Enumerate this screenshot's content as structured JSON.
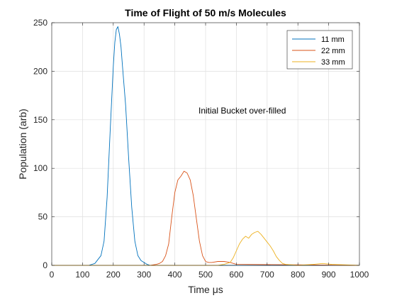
{
  "chart_data": {
    "type": "line",
    "title": "Time of Flight of 50 m/s Molecules",
    "xlabel": "Time μs",
    "ylabel": "Population (arb)",
    "xlim": [
      0,
      1000
    ],
    "ylim": [
      0,
      250
    ],
    "xticks": [
      0,
      100,
      200,
      300,
      400,
      500,
      600,
      700,
      800,
      900,
      1000
    ],
    "yticks": [
      0,
      50,
      100,
      150,
      200,
      250
    ],
    "grid": true,
    "legend_position": "top-right",
    "annotation": "Initial Bucket over-filled",
    "series": [
      {
        "name": "11 mm",
        "color": "#0072BD",
        "x": [
          0,
          120,
          140,
          150,
          160,
          170,
          180,
          190,
          200,
          205,
          210,
          215,
          220,
          225,
          230,
          240,
          250,
          260,
          270,
          280,
          290,
          300,
          310,
          320,
          340,
          1000
        ],
        "y": [
          0,
          0,
          2,
          6,
          10,
          25,
          70,
          140,
          205,
          230,
          243,
          246,
          238,
          225,
          205,
          165,
          110,
          60,
          25,
          10,
          5,
          3,
          1,
          0,
          0,
          0
        ]
      },
      {
        "name": "22 mm",
        "color": "#D95319",
        "x": [
          0,
          320,
          340,
          350,
          360,
          370,
          380,
          390,
          400,
          410,
          420,
          430,
          440,
          450,
          460,
          470,
          480,
          490,
          500,
          510,
          520,
          540,
          560,
          580,
          600,
          1000
        ],
        "y": [
          0,
          0,
          1,
          2,
          4,
          10,
          22,
          50,
          75,
          88,
          92,
          97,
          95,
          88,
          72,
          48,
          25,
          10,
          4,
          3,
          3,
          4,
          4,
          3,
          1,
          0
        ]
      },
      {
        "name": "33 mm",
        "color": "#EDB120",
        "x": [
          0,
          540,
          560,
          580,
          590,
          600,
          610,
          620,
          630,
          640,
          650,
          660,
          670,
          680,
          690,
          700,
          710,
          720,
          730,
          740,
          750,
          760,
          800,
          850,
          880,
          910,
          1000
        ],
        "y": [
          0,
          0,
          1,
          3,
          8,
          15,
          22,
          27,
          30,
          28,
          32,
          34,
          35,
          32,
          28,
          24,
          20,
          15,
          9,
          5,
          2,
          1,
          0,
          1,
          2,
          1,
          0
        ]
      }
    ]
  }
}
